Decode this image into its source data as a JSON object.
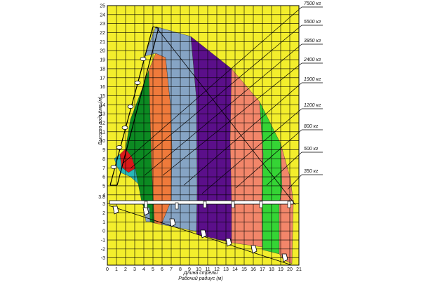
{
  "axes": {
    "y_label": "Высота подъёма (м)",
    "x_label_1": "Длина стрелы",
    "x_label_2": "Рабочий радиус (м)",
    "x_ticks": [
      "0",
      "1",
      "2",
      "3",
      "4",
      "5",
      "6",
      "7",
      "8",
      "9",
      "10",
      "11",
      "12",
      "13",
      "14",
      "15",
      "16",
      "17",
      "18",
      "19",
      "20",
      "21"
    ],
    "y_ticks": [
      "25",
      "24",
      "23",
      "22",
      "21",
      "20",
      "19",
      "18",
      "17",
      "16",
      "15",
      "14",
      "13",
      "12",
      "11",
      "10",
      "9",
      "8",
      "7",
      "6",
      "5",
      "4",
      "3",
      "2",
      "1",
      "0",
      "-1",
      "-2",
      "-3"
    ],
    "y_ref": "3.8",
    "xrange": [
      0,
      21
    ],
    "yrange": [
      -3.8,
      25
    ]
  },
  "colors": {
    "background": "#f3ee2c",
    "grid": "#000000",
    "zones": [
      "#d91a1a",
      "#27b7b7",
      "#0c8a22",
      "#ef7a3b",
      "#86a4c4",
      "#5b0f8a",
      "#f2866a",
      "#35d435",
      "#f2866a"
    ]
  },
  "load_labels": [
    "7500 кг",
    "5500 кг",
    "3850 кг",
    "2400 кг",
    "1900 кг",
    "1200 кг",
    "800 кг",
    "500 кг",
    "350 кг"
  ]
}
